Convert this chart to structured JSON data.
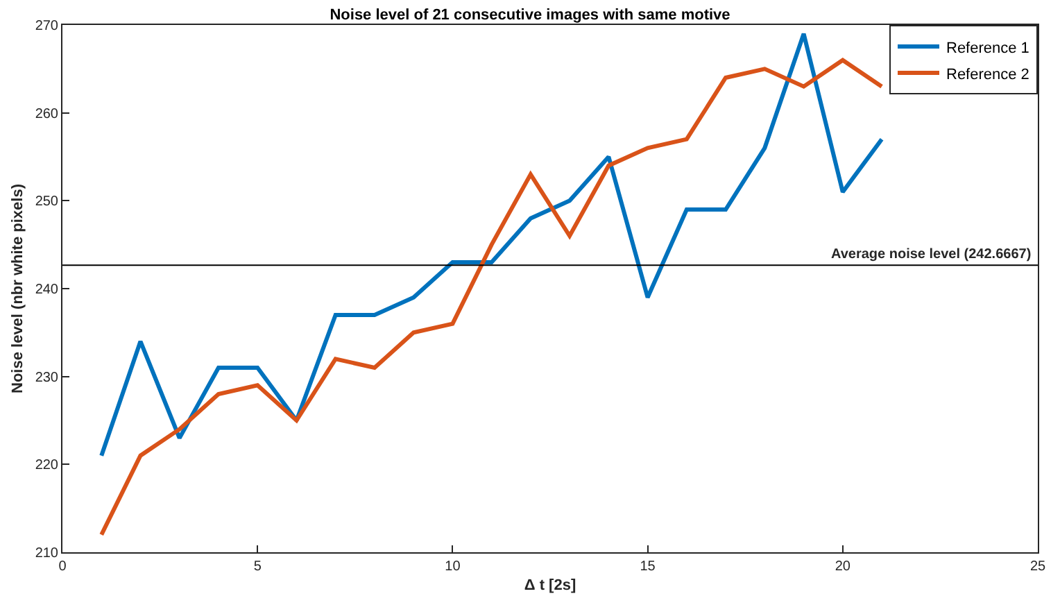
{
  "chart_data": {
    "type": "line",
    "title": "Noise level of 21 consecutive images with same motive",
    "xlabel": "Δ t [2s]",
    "ylabel": "Noise level (nbr white pixels)",
    "x": [
      1,
      2,
      3,
      4,
      5,
      6,
      7,
      8,
      9,
      10,
      11,
      12,
      13,
      14,
      15,
      16,
      17,
      18,
      19,
      20,
      21
    ],
    "series": [
      {
        "name": "Reference 1",
        "color": "#0072bd",
        "values": [
          221,
          234,
          223,
          231,
          231,
          225,
          237,
          237,
          239,
          243,
          243,
          248,
          250,
          255,
          239,
          249,
          249,
          256,
          269,
          251,
          257
        ]
      },
      {
        "name": "Reference 2",
        "color": "#d95319",
        "values": [
          212,
          221,
          224,
          228,
          229,
          225,
          232,
          231,
          235,
          236,
          245,
          253,
          246,
          254,
          256,
          257,
          264,
          265,
          263,
          266,
          263
        ]
      }
    ],
    "ref_lines": [
      {
        "axis": "y",
        "value": 242.6667,
        "label": "Average noise level (242.6667)",
        "color": "#000000"
      }
    ],
    "xlim": [
      0,
      25
    ],
    "xticks": [
      0,
      5,
      10,
      15,
      20,
      25
    ],
    "ylim": [
      210,
      270
    ],
    "yticks": [
      210,
      220,
      230,
      240,
      250,
      260,
      270
    ],
    "legend": "top right",
    "marker": "none",
    "line_style": "solid"
  }
}
